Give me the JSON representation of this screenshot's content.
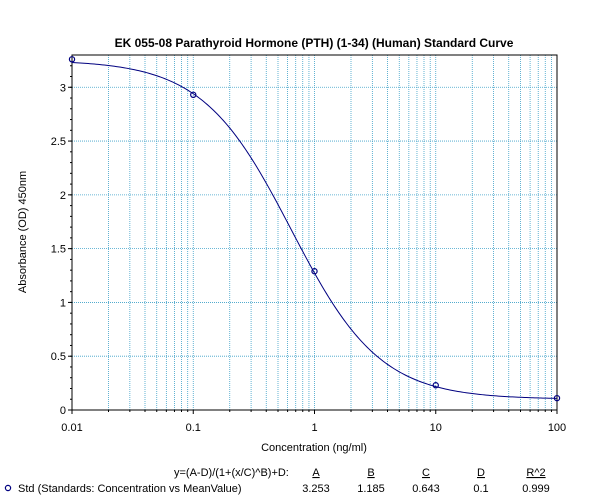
{
  "chart_data": {
    "type": "scatter",
    "title": "EK 055-08 Parathyroid Hormone (PTH) (1-34) (Human) Standard Curve",
    "xlabel": "Concentration (ng/ml)",
    "ylabel": "Absorbance (OD) 450nm",
    "x_scale": "log",
    "xlim": [
      0.01,
      100
    ],
    "ylim": [
      0,
      3.3
    ],
    "grid": true,
    "x_ticks": [
      "0.01",
      "0.1",
      "1",
      "10",
      "100"
    ],
    "y_ticks": [
      "0",
      "0.5",
      "1",
      "1.5",
      "2",
      "2.5",
      "3"
    ],
    "series": [
      {
        "name": "Std (Standards: Concentration vs MeanValue)",
        "color": "#000080",
        "x": [
          0.01,
          0.1,
          1,
          10,
          100
        ],
        "y": [
          3.26,
          2.93,
          1.29,
          0.23,
          0.11
        ]
      }
    ],
    "fit": {
      "equation": "y=(A-D)/(1+(x/C)^B)+D:",
      "param_labels": [
        "A",
        "B",
        "C",
        "D",
        "R^2"
      ],
      "params": {
        "A": 3.253,
        "B": 1.185,
        "C": 0.643,
        "D": 0.1,
        "R^2": 0.999
      },
      "param_values": [
        "3.253",
        "1.185",
        "0.643",
        "0.1",
        "0.999"
      ]
    }
  }
}
